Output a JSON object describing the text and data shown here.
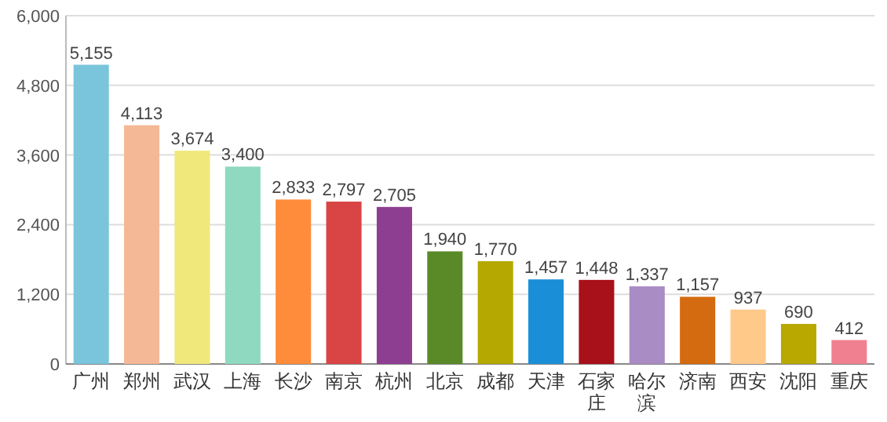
{
  "chart_data": {
    "type": "bar",
    "categories": [
      "广州",
      "郑州",
      "武汉",
      "上海",
      "长沙",
      "南京",
      "杭州",
      "北京",
      "成都",
      "天津",
      "石家庄",
      "哈尔滨",
      "济南",
      "西安",
      "沈阳",
      "重庆"
    ],
    "values": [
      5155,
      4113,
      3674,
      3400,
      2833,
      2797,
      2705,
      1940,
      1770,
      1457,
      1448,
      1337,
      1157,
      937,
      690,
      412
    ],
    "colors": [
      "#7ac5dc",
      "#f5b896",
      "#f0e87a",
      "#8fd9c0",
      "#ff8c3a",
      "#d94545",
      "#8e3e91",
      "#5a8a28",
      "#b5a800",
      "#1a8fd8",
      "#a8101a",
      "#a98cc4",
      "#d46b10",
      "#ffc98a",
      "#b8a800",
      "#f08090"
    ],
    "value_labels": [
      "5,155",
      "4,113",
      "3,674",
      "3,400",
      "2,833",
      "2,797",
      "2,705",
      "1,940",
      "1,770",
      "1,457",
      "1,448",
      "1,337",
      "1,157",
      "937",
      "690",
      "412"
    ],
    "ylim": [
      0,
      6000
    ],
    "yticks": [
      0,
      {
        "value": 1200,
        "label": "1,200"
      },
      {
        "value": 2400,
        "label": "2,400"
      },
      {
        "value": 3600,
        "label": "3,600"
      },
      {
        "value": 4800,
        "label": "4,800"
      },
      {
        "value": 6000,
        "label": "6,000"
      }
    ],
    "grid": "y"
  }
}
